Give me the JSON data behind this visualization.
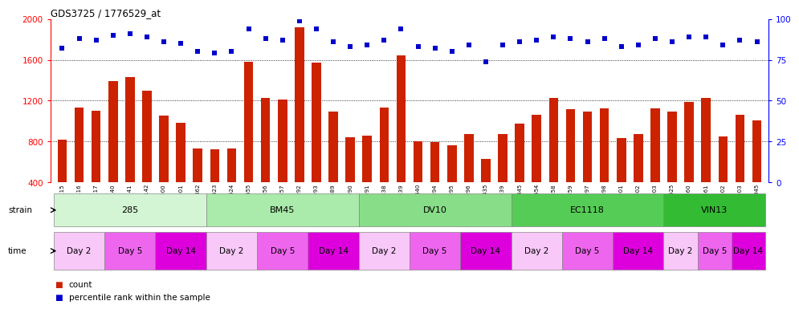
{
  "title": "GDS3725 / 1776529_at",
  "samples": [
    "GSM291115",
    "GSM291116",
    "GSM291117",
    "GSM291140",
    "GSM291141",
    "GSM291142",
    "GSM291000",
    "GSM291001",
    "GSM291462",
    "GSM291523",
    "GSM291524",
    "GSM291555",
    "GSM296856",
    "GSM296857",
    "GSM290992",
    "GSM290993",
    "GSM290989",
    "GSM290990",
    "GSM290991",
    "GSM291538",
    "GSM291539",
    "GSM291540",
    "GSM290994",
    "GSM290995",
    "GSM290996",
    "GSM291435",
    "GSM291439",
    "GSM291445",
    "GSM291554",
    "GSM296858",
    "GSM296859",
    "GSM290997",
    "GSM290998",
    "GSM290901",
    "GSM290902",
    "GSM290903",
    "GSM291525",
    "GSM296860",
    "GSM296861",
    "GSM291002",
    "GSM291003",
    "GSM292045"
  ],
  "counts": [
    820,
    1130,
    1100,
    1390,
    1430,
    1295,
    1050,
    980,
    730,
    720,
    730,
    1580,
    1230,
    1210,
    1920,
    1575,
    1090,
    840,
    855,
    1135,
    1640,
    805,
    795,
    765,
    875,
    630,
    870,
    975,
    1065,
    1230,
    1120,
    1095,
    1125,
    830,
    875,
    1125,
    1095,
    1185,
    1225,
    850,
    1060,
    1010
  ],
  "percentiles": [
    82,
    88,
    87,
    90,
    91,
    89,
    86,
    85,
    80,
    79,
    80,
    94,
    88,
    87,
    99,
    94,
    86,
    83,
    84,
    87,
    94,
    83,
    82,
    80,
    84,
    74,
    84,
    86,
    87,
    89,
    88,
    86,
    88,
    83,
    84,
    88,
    86,
    89,
    89,
    84,
    87,
    86
  ],
  "strains": [
    {
      "label": "285",
      "start": 0,
      "end": 9,
      "color": "#d4f5d4"
    },
    {
      "label": "BM45",
      "start": 9,
      "end": 18,
      "color": "#aaeaaa"
    },
    {
      "label": "DV10",
      "start": 18,
      "end": 27,
      "color": "#88dd88"
    },
    {
      "label": "EC1118",
      "start": 27,
      "end": 36,
      "color": "#55cc55"
    },
    {
      "label": "VIN13",
      "start": 36,
      "end": 42,
      "color": "#33bb33"
    }
  ],
  "time_blocks": [
    {
      "label": "Day 2",
      "start": 0,
      "end": 3,
      "color": "#f8c8f8"
    },
    {
      "label": "Day 5",
      "start": 3,
      "end": 6,
      "color": "#ee66ee"
    },
    {
      "label": "Day 14",
      "start": 6,
      "end": 9,
      "color": "#dd00dd"
    },
    {
      "label": "Day 2",
      "start": 9,
      "end": 12,
      "color": "#f8c8f8"
    },
    {
      "label": "Day 5",
      "start": 12,
      "end": 15,
      "color": "#ee66ee"
    },
    {
      "label": "Day 14",
      "start": 15,
      "end": 18,
      "color": "#dd00dd"
    },
    {
      "label": "Day 2",
      "start": 18,
      "end": 21,
      "color": "#f8c8f8"
    },
    {
      "label": "Day 5",
      "start": 21,
      "end": 24,
      "color": "#ee66ee"
    },
    {
      "label": "Day 14",
      "start": 24,
      "end": 27,
      "color": "#dd00dd"
    },
    {
      "label": "Day 2",
      "start": 27,
      "end": 30,
      "color": "#f8c8f8"
    },
    {
      "label": "Day 5",
      "start": 30,
      "end": 33,
      "color": "#ee66ee"
    },
    {
      "label": "Day 14",
      "start": 33,
      "end": 36,
      "color": "#dd00dd"
    },
    {
      "label": "Day 2",
      "start": 36,
      "end": 38,
      "color": "#f8c8f8"
    },
    {
      "label": "Day 5",
      "start": 38,
      "end": 40,
      "color": "#ee66ee"
    },
    {
      "label": "Day 14",
      "start": 40,
      "end": 42,
      "color": "#dd00dd"
    }
  ],
  "bar_color": "#cc2200",
  "dot_color": "#0000cc",
  "ylim_left": [
    400,
    2000
  ],
  "ylim_right": [
    0,
    100
  ],
  "yticks_left": [
    400,
    800,
    1200,
    1600,
    2000
  ],
  "yticks_right": [
    0,
    25,
    50,
    75,
    100
  ],
  "grid_values": [
    800,
    1200,
    1600
  ],
  "background_color": "#ffffff"
}
